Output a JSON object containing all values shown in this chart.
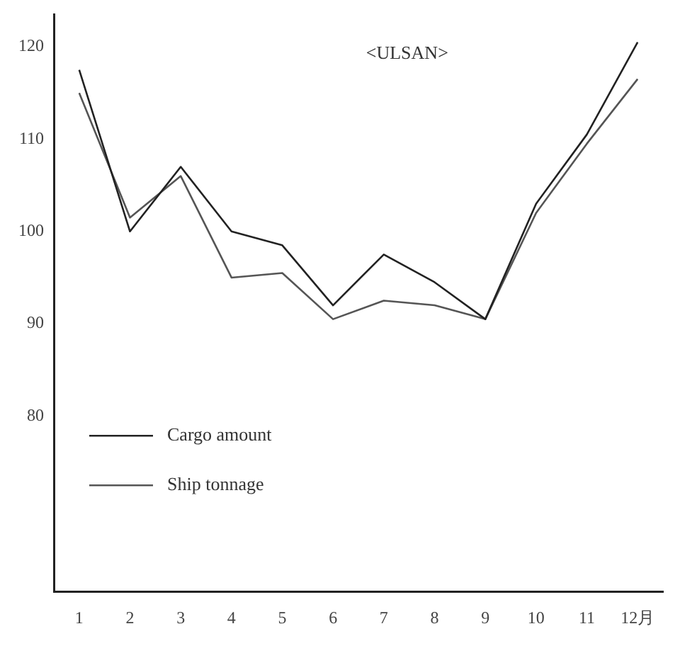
{
  "chart_data": {
    "type": "line",
    "title": "<ULSAN>",
    "categories": [
      "1",
      "2",
      "3",
      "4",
      "5",
      "6",
      "7",
      "8",
      "9",
      "10",
      "11",
      "12月"
    ],
    "series": [
      {
        "name": "Cargo amount",
        "color": "#222222",
        "values": [
          117.5,
          100,
          107,
          100,
          98.5,
          92,
          97.5,
          94.5,
          90.5,
          103,
          110.5,
          120.5
        ]
      },
      {
        "name": "Ship tonnage",
        "color": "#555555",
        "values": [
          115,
          101.5,
          106,
          95,
          95.5,
          90.5,
          92.5,
          92,
          90.5,
          102,
          109.5,
          116.5
        ]
      }
    ],
    "ylim": [
      61,
      123.5
    ],
    "yticks": [
      80,
      90,
      100,
      110,
      120
    ],
    "grid": false,
    "legend": "bottom left",
    "marker": "none",
    "line_style": "solid"
  }
}
